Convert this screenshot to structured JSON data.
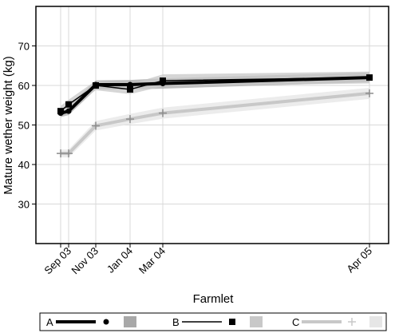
{
  "chart_data": {
    "type": "line",
    "title": "",
    "xlabel": "Farmlet",
    "ylabel": "Mature wether weight (kg)",
    "x_ticks": [
      "Sep 03",
      "Nov 03",
      "Jan 04",
      "Mar 04",
      "Apr 05"
    ],
    "ylim": [
      20,
      80
    ],
    "y_ticks": [
      30,
      40,
      50,
      60,
      70
    ],
    "grid": true,
    "legend_position": "bottom",
    "series": [
      {
        "name": "A",
        "color": "#000000",
        "band_color": "#a8a8a8",
        "marker": "circle",
        "points": [
          {
            "x": "2003-09-01",
            "y": 53.0,
            "lo": 52.0,
            "hi": 54.2
          },
          {
            "x": "2003-09-12",
            "y": 53.5,
            "lo": 52.5,
            "hi": 54.8
          },
          {
            "x": "2003-11-01",
            "y": 60.2,
            "lo": 59.0,
            "hi": 61.3
          },
          {
            "x": "2004-01-05",
            "y": 60.2,
            "lo": 59.0,
            "hi": 61.4
          },
          {
            "x": "2004-03-05",
            "y": 60.5,
            "lo": 59.2,
            "hi": 61.8
          },
          {
            "x": "2005-04-05",
            "y": 62.0,
            "lo": 60.8,
            "hi": 63.3
          }
        ]
      },
      {
        "name": "B",
        "color": "#000000",
        "band_color": "#c8c8c8",
        "marker": "square",
        "points": [
          {
            "x": "2003-09-01",
            "y": 53.5,
            "lo": 52.3,
            "hi": 54.8
          },
          {
            "x": "2003-09-12",
            "y": 55.2,
            "lo": 54.0,
            "hi": 56.4
          },
          {
            "x": "2003-11-01",
            "y": 60.0,
            "lo": 58.8,
            "hi": 61.2
          },
          {
            "x": "2004-01-05",
            "y": 59.0,
            "lo": 57.8,
            "hi": 60.3
          },
          {
            "x": "2004-03-05",
            "y": 61.2,
            "lo": 59.8,
            "hi": 62.8
          },
          {
            "x": "2005-04-05",
            "y": 62.0,
            "lo": 60.5,
            "hi": 63.5
          }
        ]
      },
      {
        "name": "C",
        "color": "#c8c8c8",
        "band_color": "#e6e6e6",
        "marker": "plus",
        "points": [
          {
            "x": "2003-09-01",
            "y": 42.8,
            "lo": 41.8,
            "hi": 43.8
          },
          {
            "x": "2003-09-12",
            "y": 42.8,
            "lo": 41.8,
            "hi": 43.8
          },
          {
            "x": "2003-11-01",
            "y": 49.8,
            "lo": 48.6,
            "hi": 51.0
          },
          {
            "x": "2004-01-05",
            "y": 51.5,
            "lo": 50.2,
            "hi": 52.8
          },
          {
            "x": "2004-03-05",
            "y": 53.0,
            "lo": 51.6,
            "hi": 54.4
          },
          {
            "x": "2005-04-05",
            "y": 58.0,
            "lo": 56.6,
            "hi": 59.4
          }
        ]
      }
    ]
  }
}
